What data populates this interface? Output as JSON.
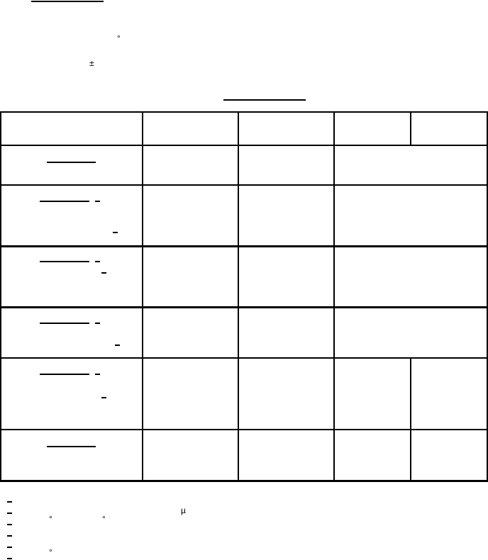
{
  "symbols": {
    "degree": "°",
    "plus_minus": "±",
    "micro": "µ"
  }
}
